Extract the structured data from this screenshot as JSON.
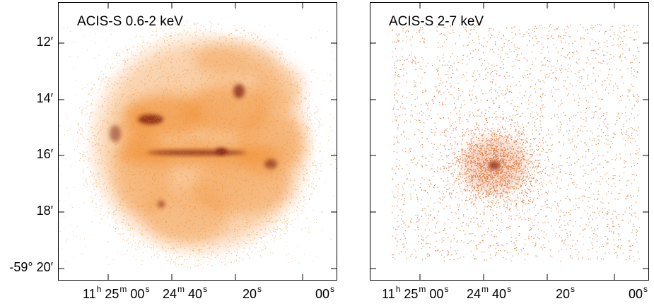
{
  "panels": [
    {
      "title": "ACIS-S 0.6-2 keV"
    },
    {
      "title": "ACIS-S 2-7 keV"
    }
  ],
  "y_axis": {
    "labels": [
      "12′",
      "14′",
      "16′",
      "18′",
      "-59° 20′"
    ]
  },
  "x_axis": {
    "labels": [
      {
        "main": "11",
        "sup": "h",
        "main2": " 25",
        "sup2": "m",
        "main3": " 00",
        "sup3": "s"
      },
      {
        "main": "24",
        "sup": "m",
        "main2": " 40",
        "sup2": "s",
        "main3": "",
        "sup3": ""
      },
      {
        "main": "20",
        "sup": "s",
        "main2": "",
        "sup2": "",
        "main3": "",
        "sup3": ""
      },
      {
        "main": "00",
        "sup": "s",
        "main2": "",
        "sup2": "",
        "main3": "",
        "sup3": ""
      }
    ]
  },
  "colors": {
    "soft_emission": "#f08a2a",
    "hard_emission": "#d9601a",
    "bright_knot": "#7a1a0a"
  }
}
